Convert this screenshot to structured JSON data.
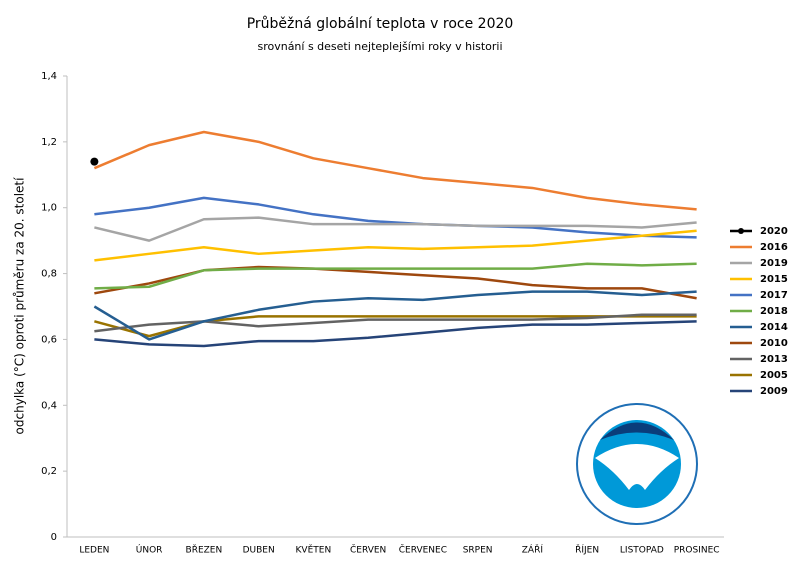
{
  "chart_data": {
    "type": "line",
    "title": "Průběžná globální teplota v roce 2020",
    "subtitle": "srovnání s deseti nejteplejšími roky v historii",
    "y_label": "odchylka (°C) oproti průměru za 20. století",
    "categories": [
      "LEDEN",
      "ÚNOR",
      "BŘEZEN",
      "DUBEN",
      "KVĚTEN",
      "ČERVEN",
      "ČERVENEC",
      "SRPEN",
      "ZÁŘÍ",
      "ŘÍJEN",
      "LISTOPAD",
      "PROSINEC"
    ],
    "ylim": [
      0,
      1.4
    ],
    "yticks": [
      0,
      {
        "value": 0.2,
        "label": "0,2"
      },
      {
        "value": 0.4,
        "label": "0,4"
      },
      {
        "value": 0.6,
        "label": "0,6"
      },
      {
        "value": 0.8,
        "label": "0,8"
      },
      {
        "value": 1.0,
        "label": "1,0"
      },
      {
        "value": 1.2,
        "label": "1,2"
      },
      {
        "value": 1.4,
        "label": "1,4"
      }
    ],
    "grid": false,
    "legend": "right",
    "series": [
      {
        "name": "2020",
        "color": "#000000",
        "values": [
          1.14,
          null,
          null,
          null,
          null,
          null,
          null,
          null,
          null,
          null,
          null,
          null
        ]
      },
      {
        "name": "2016",
        "color": "#ed7d31",
        "values": [
          1.12,
          1.19,
          1.23,
          1.2,
          1.15,
          1.12,
          1.09,
          1.075,
          1.06,
          1.03,
          1.01,
          0.995
        ]
      },
      {
        "name": "2019",
        "color": "#a5a5a5",
        "values": [
          0.94,
          0.9,
          0.965,
          0.97,
          0.95,
          0.95,
          0.95,
          0.945,
          0.945,
          0.945,
          0.94,
          0.955
        ]
      },
      {
        "name": "2015",
        "color": "#ffc000",
        "values": [
          0.84,
          0.86,
          0.88,
          0.86,
          0.87,
          0.88,
          0.875,
          0.88,
          0.885,
          0.9,
          0.915,
          0.93
        ]
      },
      {
        "name": "2017",
        "color": "#4472c4",
        "values": [
          0.98,
          1.0,
          1.03,
          1.01,
          0.98,
          0.96,
          0.95,
          0.945,
          0.94,
          0.925,
          0.915,
          0.91
        ]
      },
      {
        "name": "2018",
        "color": "#70ad47",
        "values": [
          0.755,
          0.76,
          0.81,
          0.815,
          0.815,
          0.815,
          0.815,
          0.815,
          0.815,
          0.83,
          0.825,
          0.83
        ]
      },
      {
        "name": "2014",
        "color": "#255e91",
        "values": [
          0.7,
          0.6,
          0.655,
          0.69,
          0.715,
          0.725,
          0.72,
          0.735,
          0.745,
          0.745,
          0.735,
          0.745
        ]
      },
      {
        "name": "2010",
        "color": "#9e480e",
        "values": [
          0.74,
          0.77,
          0.81,
          0.82,
          0.815,
          0.805,
          0.795,
          0.785,
          0.765,
          0.755,
          0.755,
          0.725
        ]
      },
      {
        "name": "2013",
        "color": "#636363",
        "values": [
          0.625,
          0.645,
          0.655,
          0.64,
          0.65,
          0.66,
          0.66,
          0.66,
          0.66,
          0.665,
          0.675,
          0.675
        ]
      },
      {
        "name": "2005",
        "color": "#997300",
        "values": [
          0.655,
          0.61,
          0.655,
          0.67,
          0.67,
          0.67,
          0.67,
          0.67,
          0.67,
          0.67,
          0.67,
          0.67
        ]
      },
      {
        "name": "2009",
        "color": "#264478",
        "values": [
          0.6,
          0.585,
          0.58,
          0.595,
          0.595,
          0.605,
          0.62,
          0.635,
          0.645,
          0.645,
          0.65,
          0.655
        ]
      }
    ]
  }
}
